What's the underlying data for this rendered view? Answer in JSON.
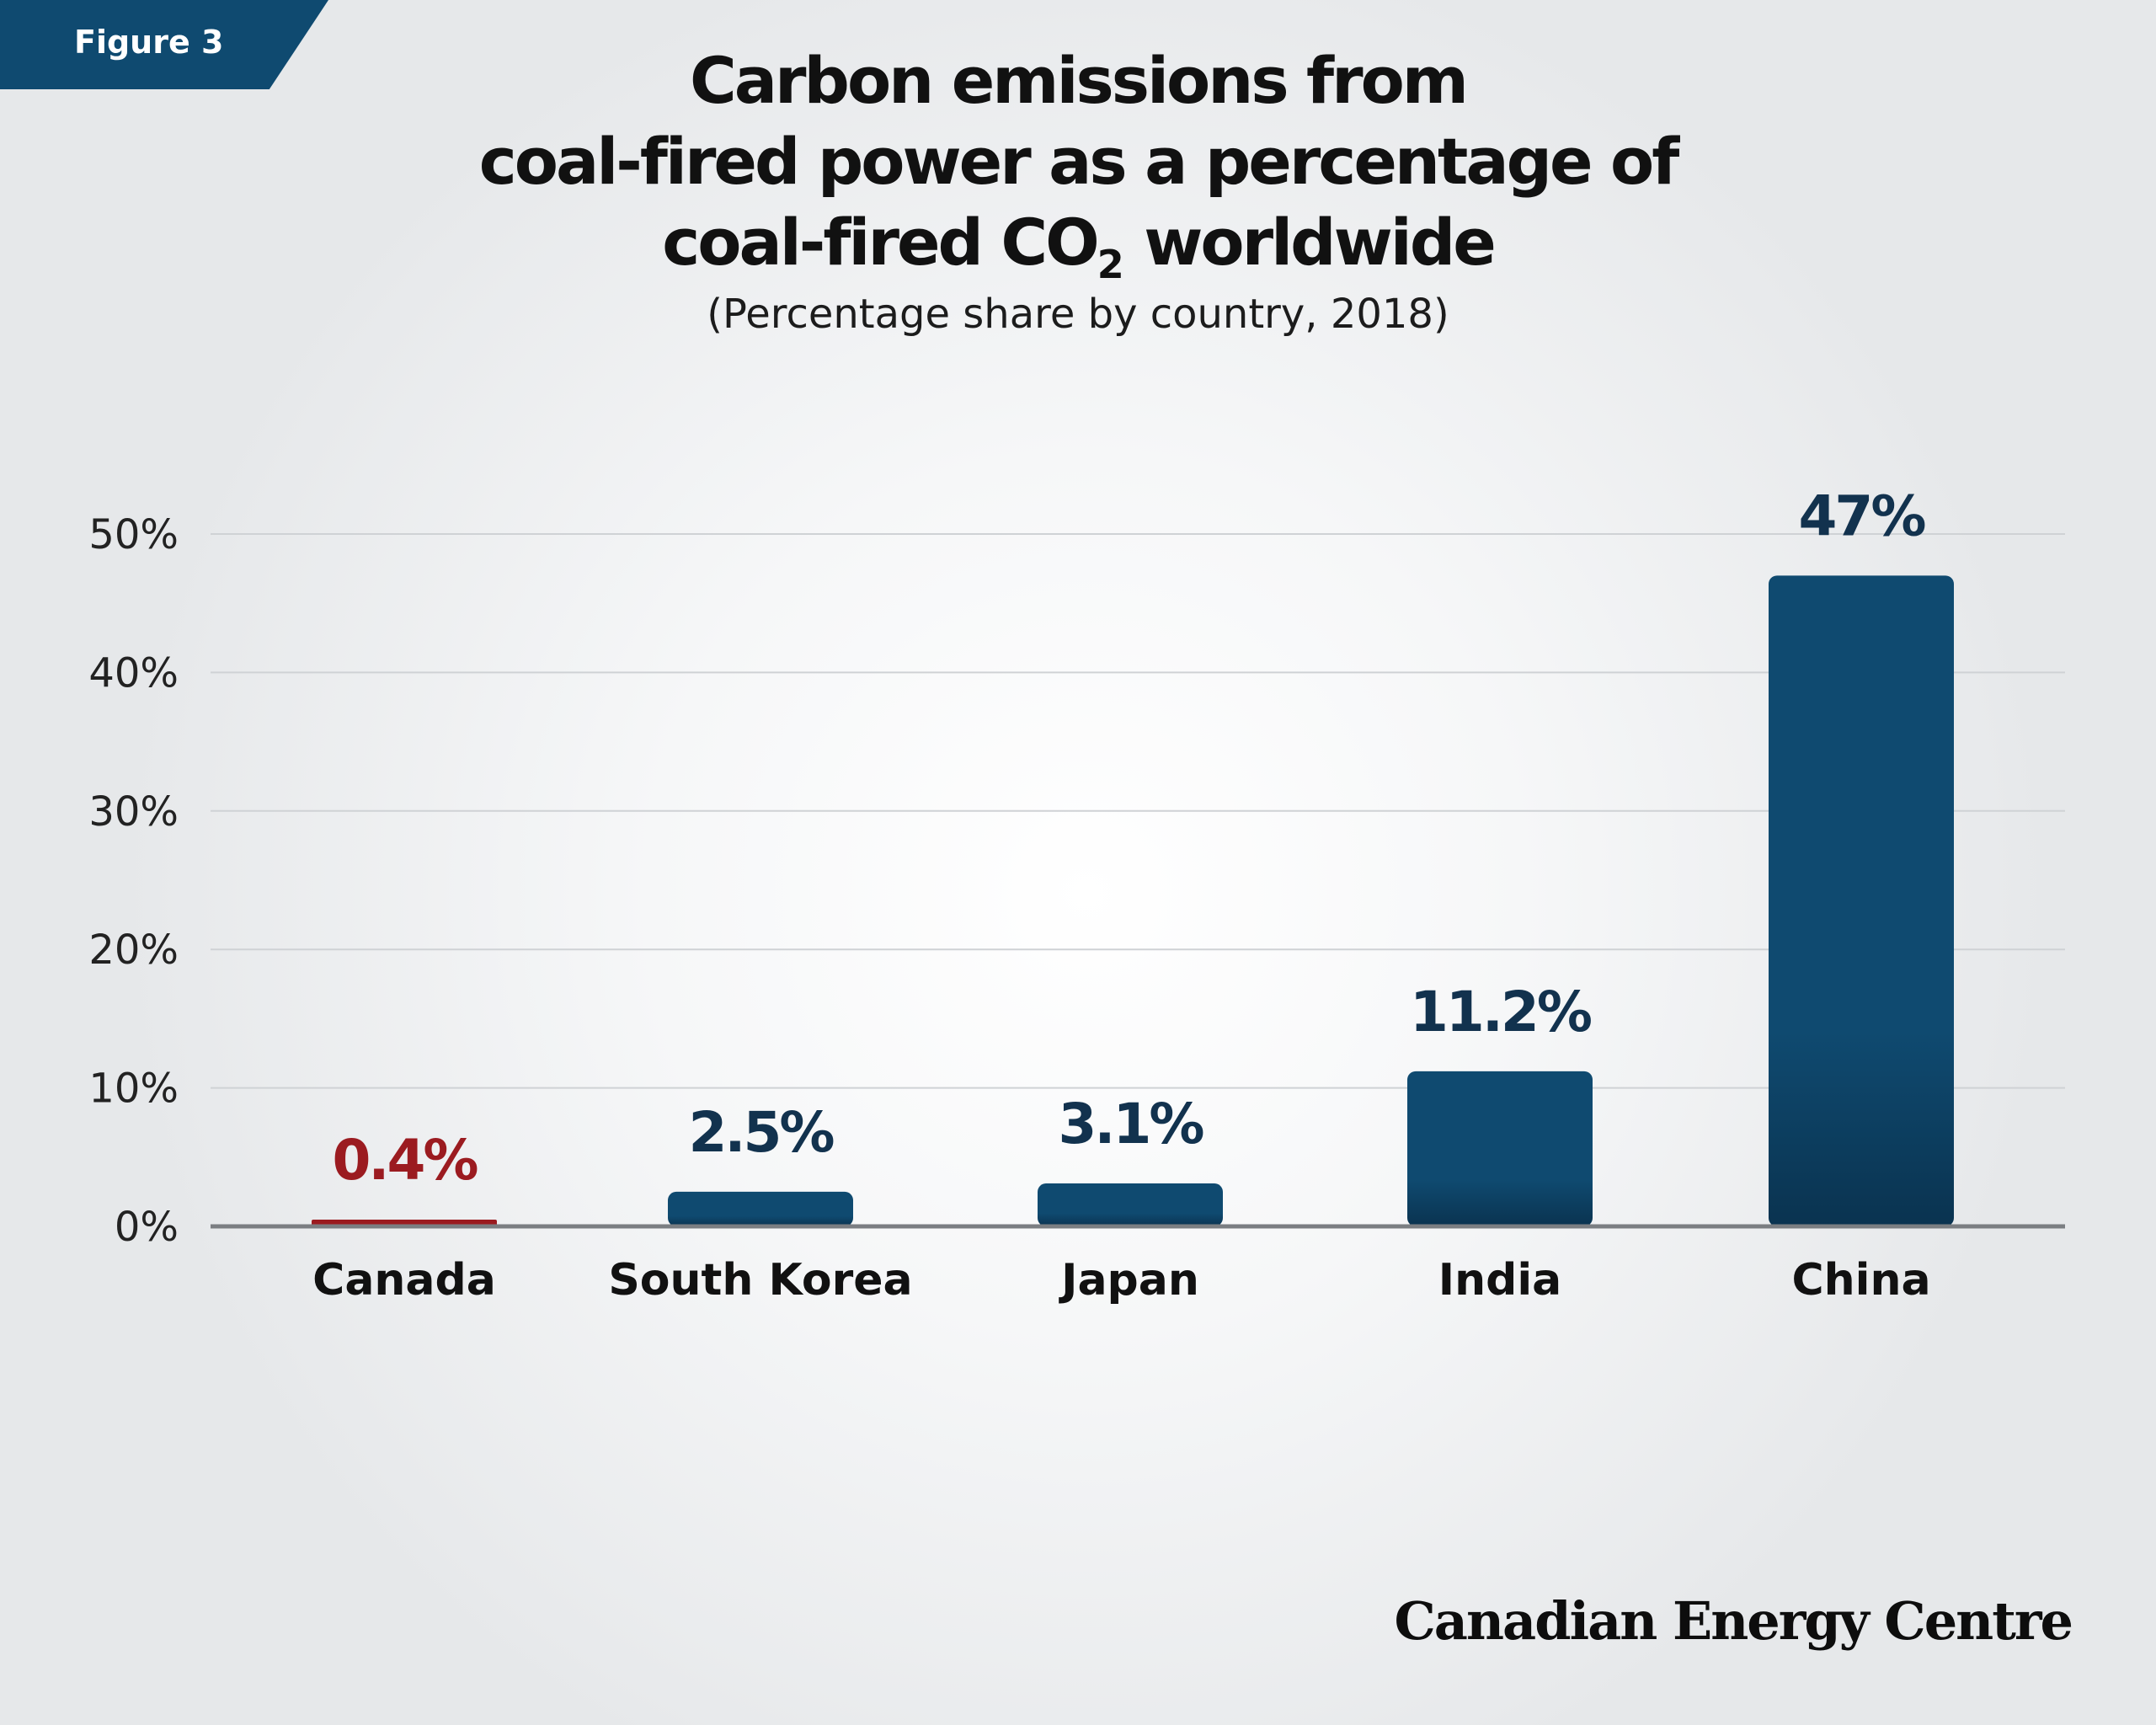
{
  "figure_label": "Figure 3",
  "title_line1": "Carbon emissions from",
  "title_line2": "coal-fired power as a percentage of",
  "title_line3_pre": "coal-fired CO",
  "title_line3_sub": "2",
  "title_line3_post": " worldwide",
  "subtitle": "(Percentage share by country, 2018)",
  "brand": "Canadian Energy Centre",
  "colors": {
    "bar": "#0f4a70",
    "bar_dark": "#0a3350",
    "highlight": "#9b1b20",
    "label": "#12324e",
    "grid": "#cfd2d5",
    "axis": "#7b7e82"
  },
  "chart_data": {
    "type": "bar",
    "title": "Carbon emissions from coal-fired power as a percentage of coal-fired CO2 worldwide",
    "subtitle": "(Percentage share by country, 2018)",
    "categories": [
      "Canada",
      "South Korea",
      "Japan",
      "India",
      "China"
    ],
    "values": [
      0.4,
      2.5,
      3.1,
      11.2,
      47
    ],
    "value_labels": [
      "0.4%",
      "2.5%",
      "3.1%",
      "11.2%",
      "47%"
    ],
    "highlight_index": 0,
    "ylim": [
      0,
      50
    ],
    "yticks": [
      0,
      10,
      20,
      30,
      40,
      50
    ],
    "ytick_labels": [
      "0%",
      "10%",
      "20%",
      "30%",
      "40%",
      "50%"
    ],
    "xlabel": "",
    "ylabel": "",
    "grid": true,
    "legend": "none"
  }
}
